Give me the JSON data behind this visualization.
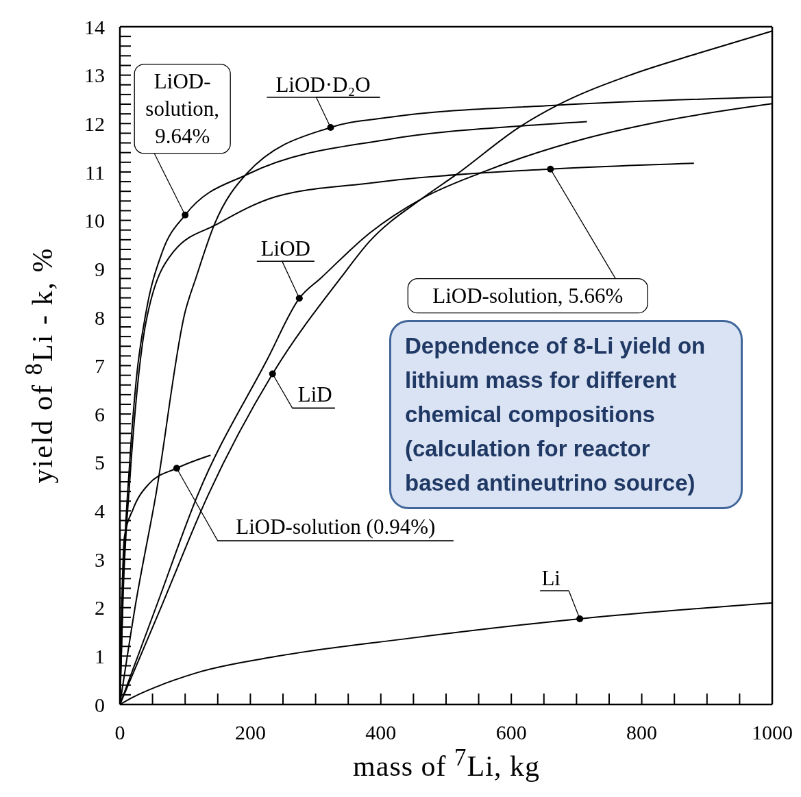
{
  "chart_data": {
    "type": "line",
    "xlabel": "mass of $^{7}$Li, kg",
    "ylabel": "yield of $^{8}$Li - k, %",
    "xlim": [
      0,
      1000
    ],
    "ylim": [
      0,
      14
    ],
    "xticks": [
      0,
      {
        "value": 50,
        "label": null
      },
      {
        "value": 100,
        "label": null
      },
      {
        "value": 150,
        "label": null
      },
      200,
      {
        "value": 250,
        "label": null
      },
      {
        "value": 300,
        "label": null
      },
      {
        "value": 350,
        "label": null
      },
      400,
      {
        "value": 450,
        "label": null
      },
      {
        "value": 500,
        "label": null
      },
      {
        "value": 550,
        "label": null
      },
      600,
      {
        "value": 650,
        "label": null
      },
      {
        "value": 700,
        "label": null
      },
      {
        "value": 750,
        "label": null
      },
      800,
      {
        "value": 850,
        "label": null
      },
      {
        "value": 900,
        "label": null
      },
      {
        "value": 950,
        "label": null
      },
      1000
    ],
    "yticks": [
      0,
      {
        "value": 0.2,
        "label": null
      },
      {
        "value": 0.4,
        "label": null
      },
      {
        "value": 0.6,
        "label": null
      },
      {
        "value": 0.8,
        "label": null
      },
      1,
      {
        "value": 1.2,
        "label": null
      },
      {
        "value": 1.4,
        "label": null
      },
      {
        "value": 1.6,
        "label": null
      },
      {
        "value": 1.8,
        "label": null
      },
      2,
      {
        "value": 2.2,
        "label": null
      },
      {
        "value": 2.4,
        "label": null
      },
      {
        "value": 2.6,
        "label": null
      },
      {
        "value": 2.8,
        "label": null
      },
      3,
      {
        "value": 3.2,
        "label": null
      },
      {
        "value": 3.4,
        "label": null
      },
      {
        "value": 3.6,
        "label": null
      },
      {
        "value": 3.8,
        "label": null
      },
      4,
      {
        "value": 4.2,
        "label": null
      },
      {
        "value": 4.4,
        "label": null
      },
      {
        "value": 4.6,
        "label": null
      },
      {
        "value": 4.8,
        "label": null
      },
      5,
      {
        "value": 5.2,
        "label": null
      },
      {
        "value": 5.4,
        "label": null
      },
      {
        "value": 5.6,
        "label": null
      },
      {
        "value": 5.8,
        "label": null
      },
      6,
      {
        "value": 6.2,
        "label": null
      },
      {
        "value": 6.4,
        "label": null
      },
      {
        "value": 6.6,
        "label": null
      },
      {
        "value": 6.8,
        "label": null
      },
      7,
      {
        "value": 7.2,
        "label": null
      },
      {
        "value": 7.4,
        "label": null
      },
      {
        "value": 7.6,
        "label": null
      },
      {
        "value": 7.8,
        "label": null
      },
      8,
      {
        "value": 8.2,
        "label": null
      },
      {
        "value": 8.4,
        "label": null
      },
      {
        "value": 8.6,
        "label": null
      },
      {
        "value": 8.8,
        "label": null
      },
      9,
      {
        "value": 9.2,
        "label": null
      },
      {
        "value": 9.4,
        "label": null
      },
      {
        "value": 9.6,
        "label": null
      },
      {
        "value": 9.8,
        "label": null
      },
      10,
      {
        "value": 10.2,
        "label": null
      },
      {
        "value": 10.4,
        "label": null
      },
      {
        "value": 10.6,
        "label": null
      },
      {
        "value": 10.8,
        "label": null
      },
      11,
      {
        "value": 11.2,
        "label": null
      },
      {
        "value": 11.4,
        "label": null
      },
      {
        "value": 11.6,
        "label": null
      },
      {
        "value": 11.8,
        "label": null
      },
      12,
      {
        "value": 12.2,
        "label": null
      },
      {
        "value": 12.4,
        "label": null
      },
      {
        "value": 12.6,
        "label": null
      },
      {
        "value": 12.8,
        "label": null
      },
      13,
      {
        "value": 13.2,
        "label": null
      },
      {
        "value": 13.4,
        "label": null
      },
      {
        "value": 13.6,
        "label": null
      },
      {
        "value": 13.8,
        "label": null
      },
      14
    ],
    "marker": "none",
    "line_style": "solid",
    "series": [
      {
        "name": "LiOD-solution, 9.64%",
        "color": "#000000",
        "x": [
          0,
          5,
          15,
          25,
          40,
          65,
          100,
          197,
          414,
          615,
          716
        ],
        "values": [
          0,
          2.5,
          5,
          6.7,
          8.1,
          9.35,
          10.11,
          10.96,
          11.68,
          11.95,
          12.04
        ]
      },
      {
        "name": "LiOD-solution, 5.66%",
        "color": "#000000",
        "x": [
          0,
          5,
          15,
          25,
          40,
          82,
          149,
          239,
          383,
          414,
          660,
          880
        ],
        "values": [
          0,
          2.3,
          4.6,
          6.3,
          7.9,
          9.35,
          9.92,
          10.49,
          10.77,
          10.82,
          11.06,
          11.18
        ]
      },
      {
        "name": "LiOD·D₂O",
        "color": "#000000",
        "x": [
          0,
          24,
          55,
          100,
          117,
          145,
          194,
          323,
          414,
          671,
          1000
        ],
        "values": [
          0,
          2.07,
          4.32,
          8.11,
          8.83,
          9.92,
          10.96,
          11.92,
          12.13,
          12.38,
          12.55
        ]
      },
      {
        "name": "LiOD",
        "color": "#000000",
        "x": [
          0,
          57,
          119,
          226,
          275,
          309,
          383,
          463,
          555,
          716,
          824,
          1000
        ],
        "values": [
          0,
          2.07,
          4.32,
          7.13,
          8.39,
          8.82,
          9.74,
          10.45,
          10.99,
          11.7,
          12.03,
          12.41
        ]
      },
      {
        "name": "LiD",
        "color": "#000000",
        "x": [
          0,
          65,
          135,
          234,
          339,
          383,
          463,
          515,
          615,
          671,
          784,
          884,
          1000
        ],
        "values": [
          0,
          2.07,
          4.32,
          6.83,
          8.82,
          9.57,
          10.45,
          10.94,
          11.95,
          12.38,
          13.01,
          13.44,
          13.91
        ]
      },
      {
        "name": "LiOD-solution (0.94%)",
        "color": "#000000",
        "x": [
          0,
          2,
          7,
          20,
          44,
          87,
          139
        ],
        "values": [
          0,
          1.5,
          3.47,
          4.03,
          4.55,
          4.88,
          5.15
        ]
      },
      {
        "name": "Li",
        "color": "#000000",
        "x": [
          0,
          20,
          57,
          119,
          243,
          434,
          705,
          1000
        ],
        "values": [
          0,
          0.15,
          0.37,
          0.66,
          1,
          1.35,
          1.77,
          2.1
        ]
      }
    ],
    "annotations": [
      "Dependence of 8-Li yield on lithium mass for different chemical compositions (calculation for reactor based antineutrino source)"
    ]
  }
}
